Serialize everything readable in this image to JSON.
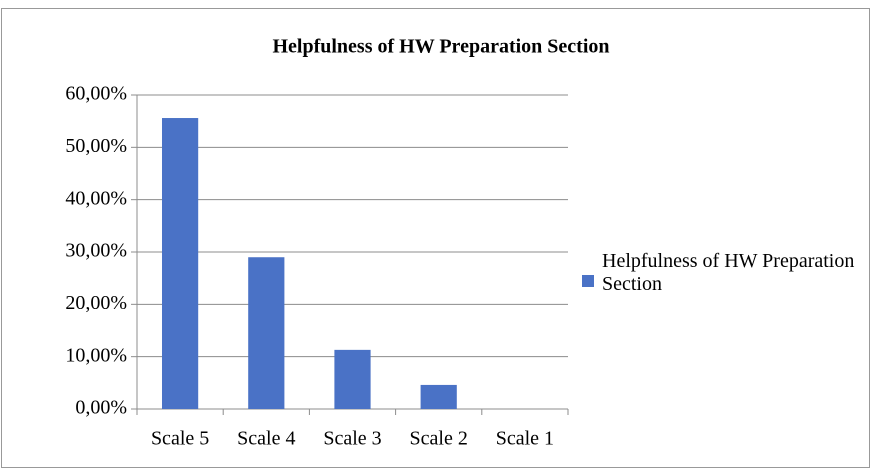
{
  "chart_data": {
    "type": "bar",
    "title": "Helpfulness of HW Preparation Section",
    "categories": [
      "Scale 5",
      "Scale 4",
      "Scale 3",
      "Scale 2",
      "Scale 1"
    ],
    "series": [
      {
        "name": "Helpfulness of HW Preparation Section",
        "color": "#4a72c6",
        "values": [
          55.6,
          29.0,
          11.3,
          4.6,
          0
        ]
      }
    ],
    "ylim": [
      0,
      60
    ],
    "yticks": [
      {
        "value": 0,
        "label": "0,00%"
      },
      {
        "value": 10,
        "label": "10,00%"
      },
      {
        "value": 20,
        "label": "20,00%"
      },
      {
        "value": 30,
        "label": "30,00%"
      },
      {
        "value": 40,
        "label": "40,00%"
      },
      {
        "value": 50,
        "label": "50,00%"
      },
      {
        "value": 60,
        "label": "60,00%"
      }
    ],
    "grid": true,
    "legend": "right"
  }
}
